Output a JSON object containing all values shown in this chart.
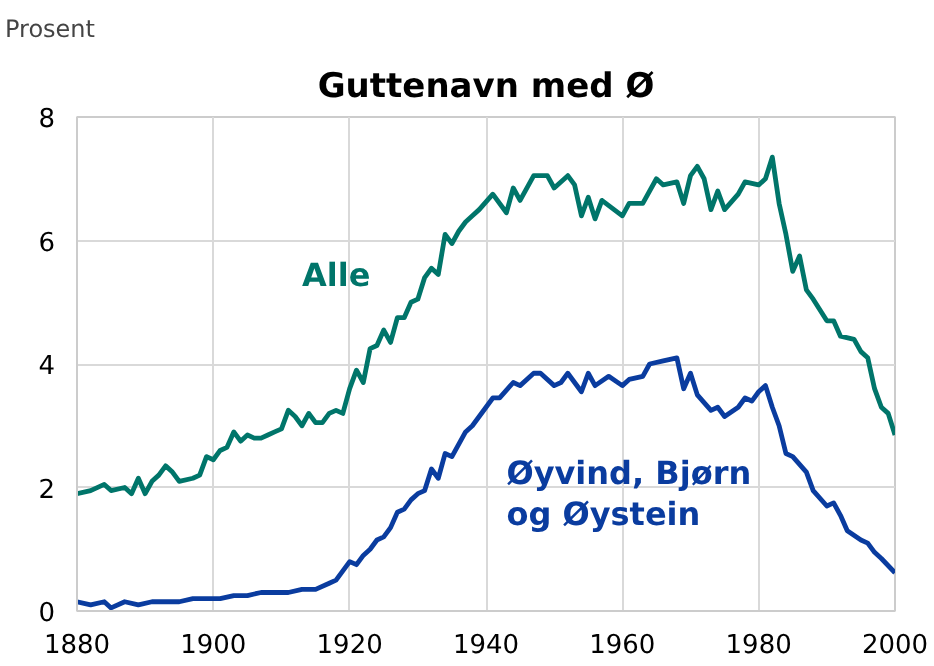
{
  "chart_data": {
    "type": "line",
    "title": "Guttenavn med Ø",
    "ylabel": "Prosent",
    "xlim": [
      1880,
      2000
    ],
    "xticks": [
      1880,
      1900,
      1920,
      1940,
      1960,
      1980,
      2000
    ],
    "ylim": [
      0,
      8
    ],
    "yticks": [
      0,
      2,
      4,
      6,
      8
    ],
    "grid": true,
    "legend": false,
    "marker": "none",
    "line_style": "solid",
    "series": [
      {
        "name": "Alle",
        "color": "#00756a",
        "x": [
          1880,
          1882,
          1884,
          1885,
          1887,
          1888,
          1889,
          1890,
          1891,
          1892,
          1893,
          1894,
          1895,
          1897,
          1898,
          1899,
          1900,
          1901,
          1902,
          1903,
          1904,
          1905,
          1906,
          1907,
          1908,
          1909,
          1910,
          1911,
          1912,
          1913,
          1914,
          1915,
          1916,
          1917,
          1918,
          1919,
          1920,
          1921,
          1922,
          1923,
          1924,
          1925,
          1926,
          1927,
          1928,
          1929,
          1930,
          1931,
          1932,
          1933,
          1934,
          1935,
          1936,
          1937,
          1938,
          1939,
          1941,
          1943,
          1944,
          1945,
          1947,
          1949,
          1950,
          1952,
          1953,
          1954,
          1955,
          1956,
          1957,
          1960,
          1961,
          1963,
          1965,
          1966,
          1968,
          1969,
          1970,
          1971,
          1972,
          1973,
          1974,
          1975,
          1977,
          1978,
          1980,
          1981,
          1982,
          1983,
          1984,
          1985,
          1986,
          1987,
          1988,
          1990,
          1991,
          1992,
          1994,
          1995,
          1996,
          1997,
          1998,
          1999,
          2000
        ],
        "values": [
          1.9,
          1.95,
          2.05,
          1.95,
          2.0,
          1.9,
          2.15,
          1.9,
          2.1,
          2.2,
          2.35,
          2.25,
          2.1,
          2.15,
          2.2,
          2.5,
          2.45,
          2.6,
          2.65,
          2.9,
          2.75,
          2.85,
          2.8,
          2.8,
          2.85,
          2.9,
          2.95,
          3.25,
          3.15,
          3.0,
          3.2,
          3.05,
          3.05,
          3.2,
          3.25,
          3.2,
          3.6,
          3.9,
          3.7,
          4.25,
          4.3,
          4.55,
          4.35,
          4.75,
          4.75,
          5.0,
          5.05,
          5.4,
          5.55,
          5.45,
          6.1,
          5.95,
          6.15,
          6.3,
          6.4,
          6.5,
          6.75,
          6.45,
          6.85,
          6.65,
          7.05,
          7.05,
          6.85,
          7.05,
          6.9,
          6.4,
          6.7,
          6.35,
          6.65,
          6.4,
          6.6,
          6.6,
          7.0,
          6.9,
          6.95,
          6.6,
          7.05,
          7.2,
          7.0,
          6.5,
          6.8,
          6.5,
          6.75,
          6.95,
          6.9,
          7.0,
          7.35,
          6.6,
          6.1,
          5.5,
          5.75,
          5.2,
          5.05,
          4.7,
          4.7,
          4.45,
          4.4,
          4.2,
          4.1,
          3.6,
          3.3,
          3.2,
          2.85
        ]
      },
      {
        "name": "Øyvind, Bjørn og Øystein",
        "color": "#0a3c9f",
        "x": [
          1880,
          1882,
          1884,
          1885,
          1887,
          1889,
          1891,
          1893,
          1895,
          1897,
          1899,
          1901,
          1903,
          1905,
          1907,
          1909,
          1911,
          1913,
          1915,
          1917,
          1918,
          1920,
          1921,
          1922,
          1923,
          1924,
          1925,
          1926,
          1927,
          1928,
          1929,
          1930,
          1931,
          1932,
          1933,
          1934,
          1935,
          1937,
          1938,
          1940,
          1941,
          1942,
          1944,
          1945,
          1947,
          1948,
          1950,
          1951,
          1952,
          1954,
          1955,
          1956,
          1958,
          1960,
          1961,
          1963,
          1964,
          1966,
          1968,
          1969,
          1970,
          1971,
          1973,
          1974,
          1975,
          1977,
          1978,
          1979,
          1980,
          1981,
          1982,
          1983,
          1984,
          1985,
          1987,
          1988,
          1990,
          1991,
          1992,
          1993,
          1995,
          1996,
          1997,
          1998,
          2000
        ],
        "values": [
          0.15,
          0.1,
          0.15,
          0.05,
          0.15,
          0.1,
          0.15,
          0.15,
          0.15,
          0.2,
          0.2,
          0.2,
          0.25,
          0.25,
          0.3,
          0.3,
          0.3,
          0.35,
          0.35,
          0.45,
          0.5,
          0.8,
          0.75,
          0.9,
          1.0,
          1.15,
          1.2,
          1.35,
          1.6,
          1.65,
          1.8,
          1.9,
          1.95,
          2.3,
          2.15,
          2.55,
          2.5,
          2.9,
          3.0,
          3.3,
          3.45,
          3.45,
          3.7,
          3.65,
          3.85,
          3.85,
          3.65,
          3.7,
          3.85,
          3.55,
          3.85,
          3.65,
          3.8,
          3.65,
          3.75,
          3.8,
          4.0,
          4.05,
          4.1,
          3.6,
          3.85,
          3.5,
          3.25,
          3.3,
          3.15,
          3.3,
          3.45,
          3.4,
          3.55,
          3.65,
          3.3,
          3.0,
          2.55,
          2.5,
          2.25,
          1.95,
          1.7,
          1.75,
          1.55,
          1.3,
          1.15,
          1.1,
          0.95,
          0.85,
          0.62
        ]
      }
    ]
  }
}
